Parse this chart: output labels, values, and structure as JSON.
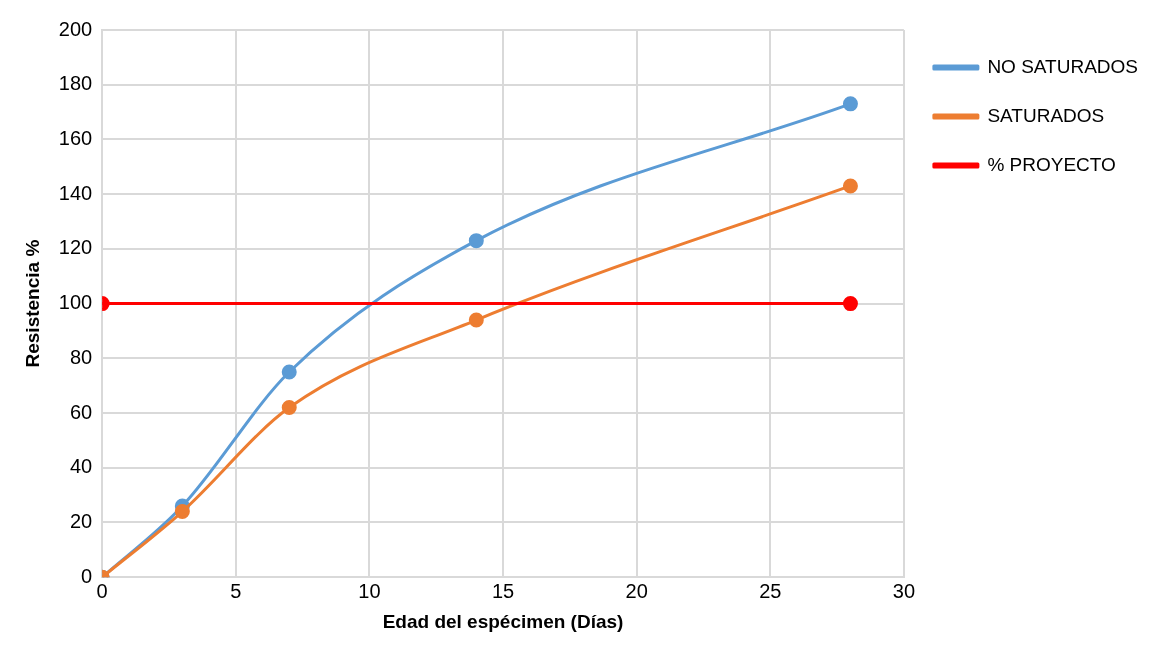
{
  "chart_data": {
    "type": "line",
    "xlabel": "Edad del espécimen (Días)",
    "ylabel": "Resistencia %",
    "series": [
      {
        "name": "NO SATURADOS",
        "color": "#5b9bd5",
        "x": [
          0,
          3,
          7,
          14,
          28
        ],
        "values": [
          0,
          26,
          75,
          123,
          173
        ]
      },
      {
        "name": "SATURADOS",
        "color": "#ed7d31",
        "x": [
          0,
          3,
          7,
          14,
          28
        ],
        "values": [
          0,
          24,
          62,
          94,
          143
        ]
      },
      {
        "name": "% PROYECTO",
        "color": "#ff0000",
        "x": [
          0,
          28
        ],
        "values": [
          100,
          100
        ]
      }
    ],
    "xlim": [
      0,
      30
    ],
    "xticks": [
      0,
      5,
      10,
      15,
      20,
      25,
      30
    ],
    "ylim": [
      0,
      200
    ],
    "yticks": [
      0,
      20,
      40,
      60,
      80,
      100,
      120,
      140,
      160,
      180,
      200
    ],
    "grid": true,
    "legend": "right",
    "marker": "circle",
    "line_style": "solid"
  }
}
